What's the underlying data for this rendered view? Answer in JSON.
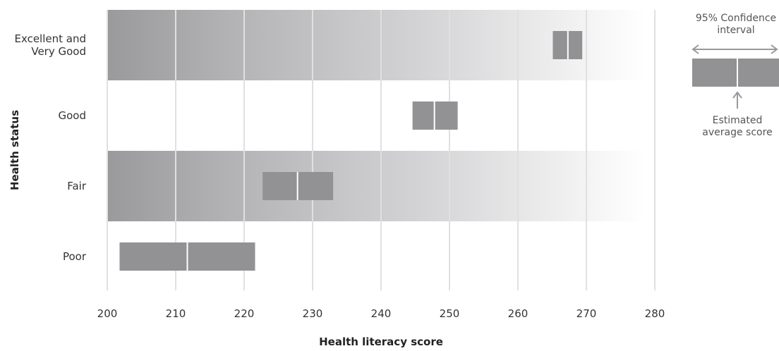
{
  "chart_data": {
    "type": "bar",
    "title": "",
    "xlabel": "Health literacy score",
    "ylabel": "Health status",
    "xlim": [
      200,
      280
    ],
    "xticks": [
      200,
      210,
      220,
      230,
      240,
      250,
      260,
      270,
      280
    ],
    "xtick_labels": [
      "200",
      "210",
      "220",
      "230",
      "240",
      "250",
      "260",
      "270",
      "280"
    ],
    "grid": true,
    "categories": [
      "Excellent and\nVery Good",
      "Good",
      "Fair",
      "Poor"
    ],
    "estimates": [
      267.3,
      247.8,
      227.8,
      211.7
    ],
    "ci_lower": [
      265.1,
      244.6,
      222.7,
      201.8
    ],
    "ci_upper": [
      269.4,
      251.2,
      233.0,
      221.6
    ],
    "legend": {
      "ci_label": "95% Confidence\ninterval",
      "estimate_label": "Estimated\naverage score",
      "placement": "top-right"
    },
    "colors": {
      "bar": "#929294",
      "band": "#b8b8ba",
      "grid": "#e0e0e0",
      "separator": "#ffffff",
      "legend_arrow": "#999999"
    }
  }
}
